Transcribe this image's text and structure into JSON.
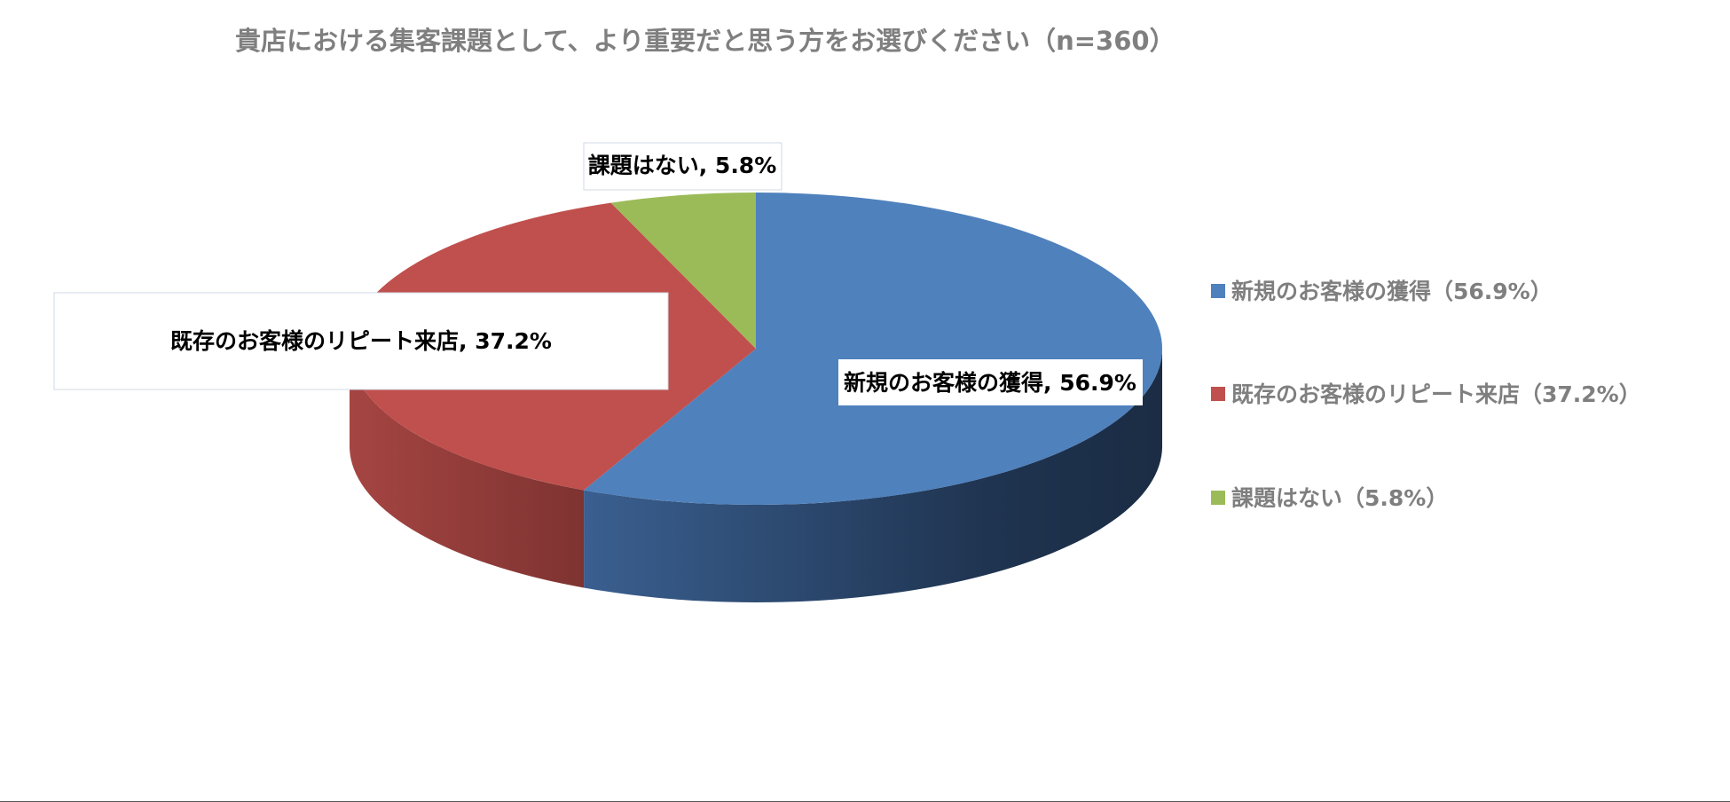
{
  "chart_data": {
    "type": "pie",
    "title": "貴店における集客課題として、より重要だと思う方をお選びください（n=360）",
    "slices": [
      {
        "name": "新規のお客様の獲得",
        "value": 56.9,
        "color": "#4f81bd",
        "data_label": "新規のお客様の獲得, 56.9%",
        "legend_label": "新規のお客様の獲得（56.9%）"
      },
      {
        "name": "既存のお客様のリピート来店",
        "value": 37.2,
        "color": "#c0504d",
        "data_label": "既存のお客様のリピート来店, 37.2%",
        "legend_label": "既存のお客様のリピート来店（37.2%）"
      },
      {
        "name": "課題はない",
        "value": 5.8,
        "color": "#9bbb59",
        "data_label": "課題はない, 5.8%",
        "legend_label": "課題はない（5.8%）"
      }
    ],
    "legend_position": "right",
    "style": "3d-pie"
  }
}
